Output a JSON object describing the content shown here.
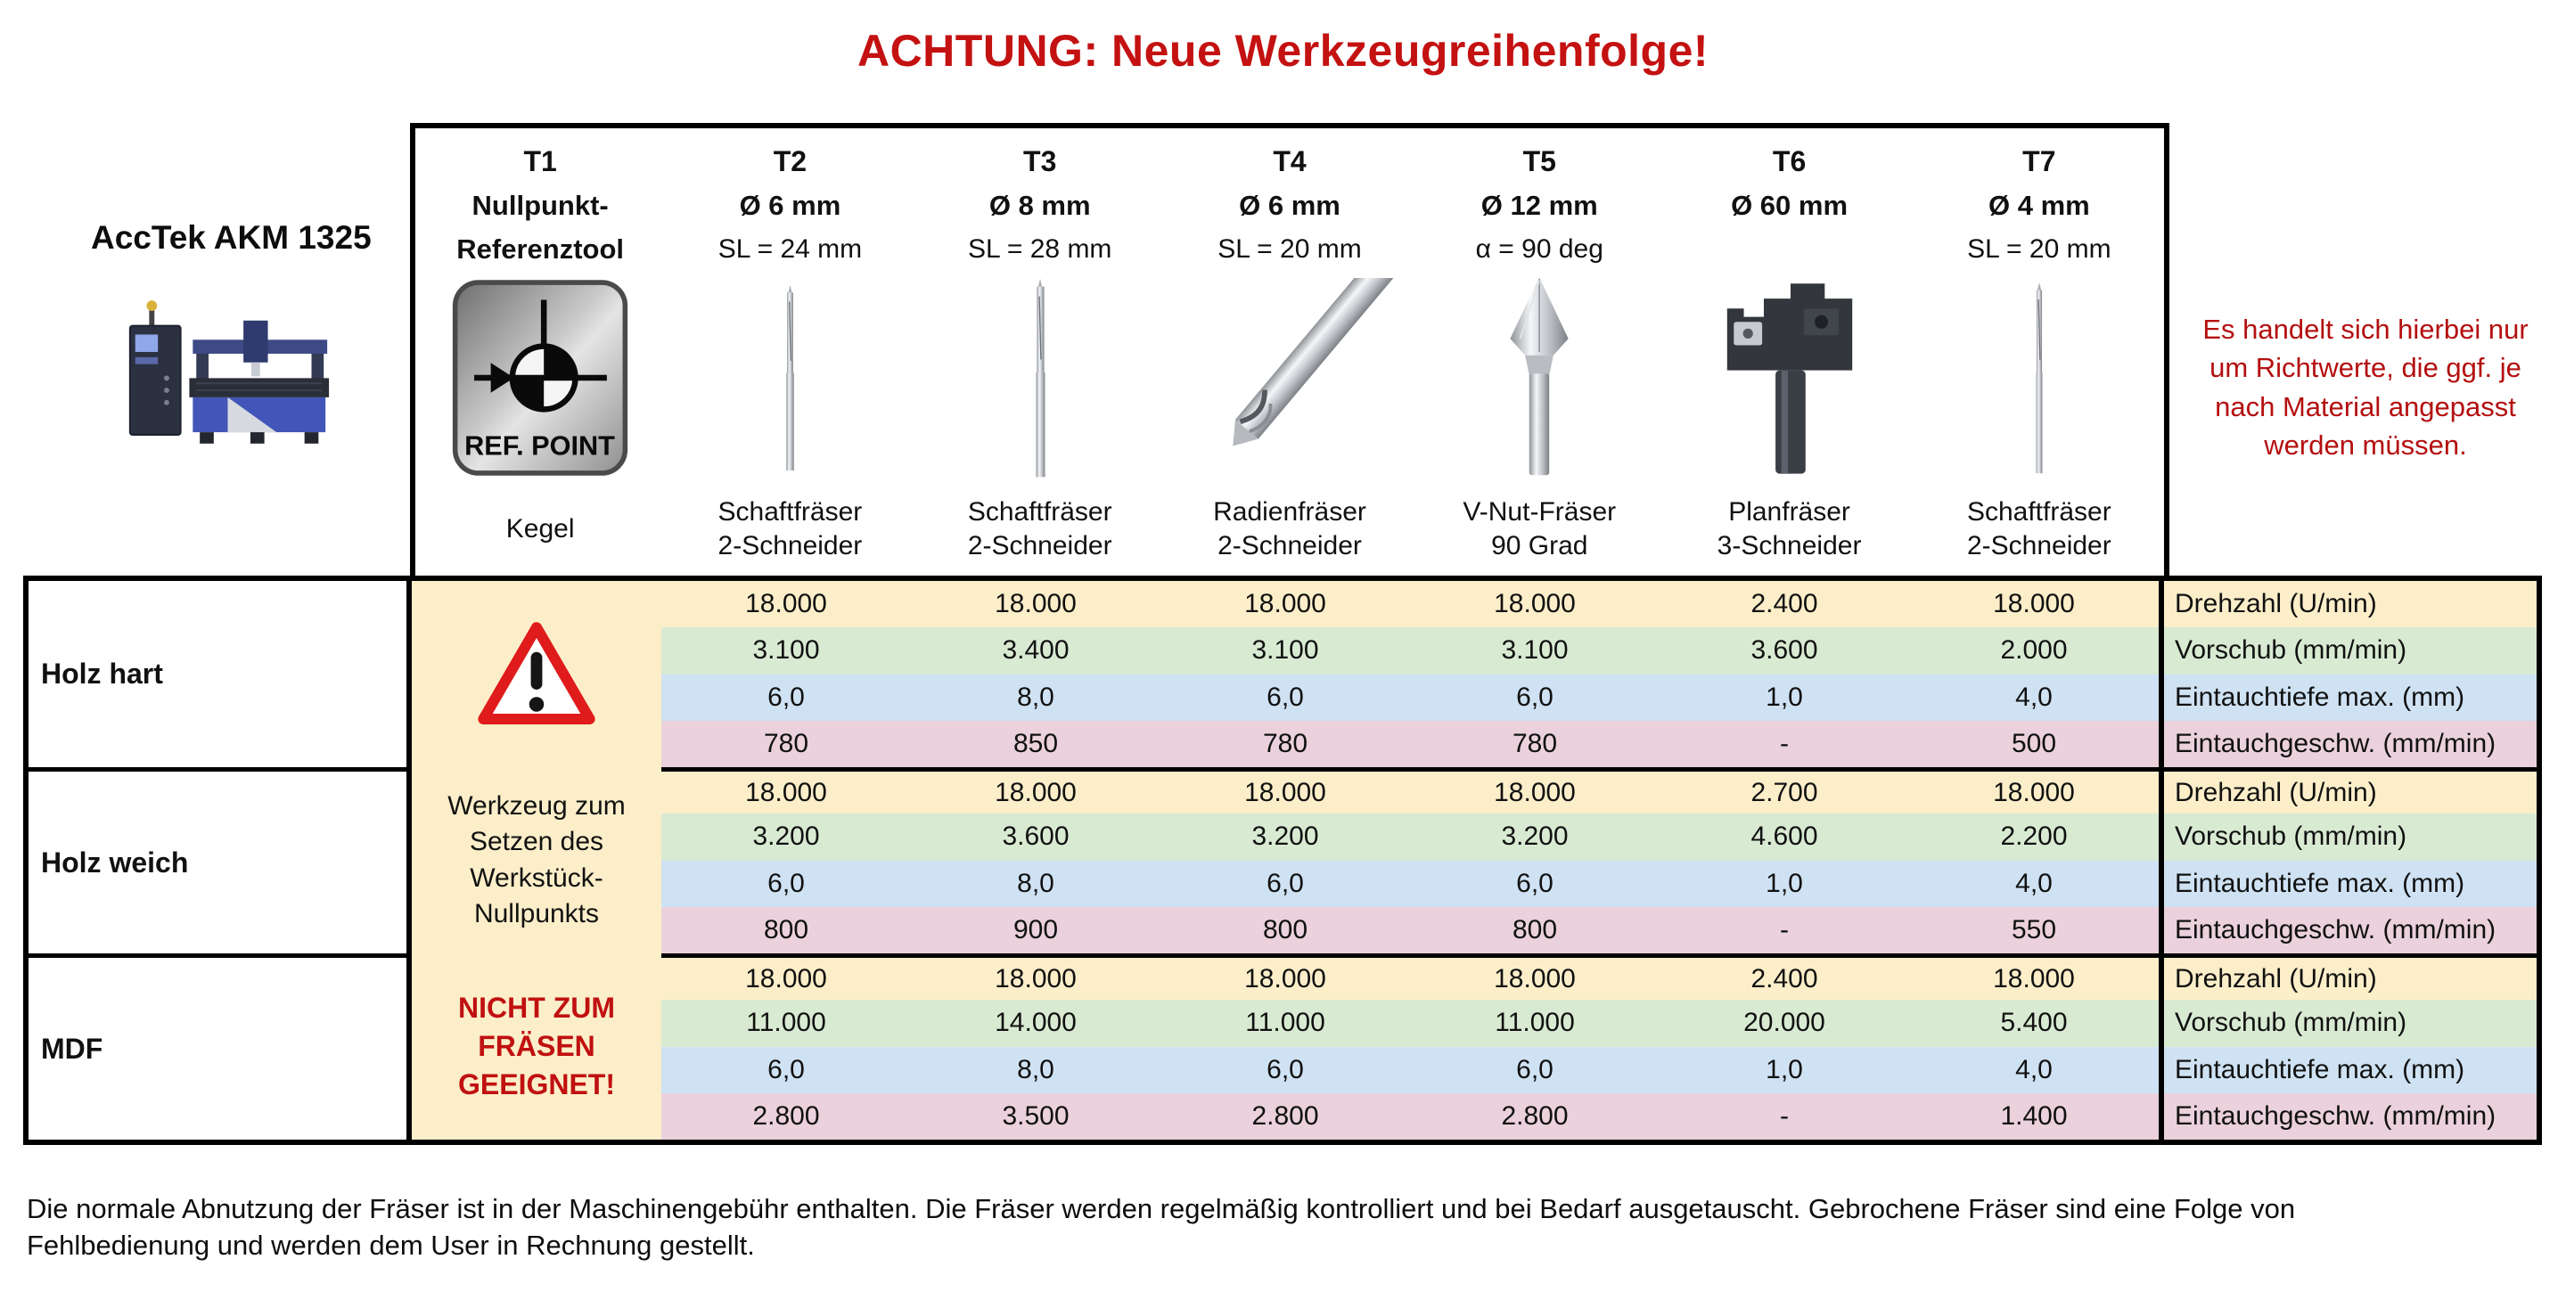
{
  "title": "ACHTUNG: Neue Werkzeugreihenfolge!",
  "machine_label": "AccTek AKM 1325",
  "note": "Es handelt sich hierbei nur\num Richtwerte, die ggf. je\nnach Material angepasst\nwerden müssen.",
  "header": {
    "tools": [
      {
        "id": "T1",
        "spec1": "Nullpunkt-",
        "spec2": "Referenztool",
        "name": "Kegel",
        "icon": "ref-point-icon"
      },
      {
        "id": "T2",
        "spec1": "Ø 6 mm",
        "spec2": "SL = 24 mm",
        "name": "Schaftfräser\n2-Schneider",
        "icon": "endmill-icon"
      },
      {
        "id": "T3",
        "spec1": "Ø 8 mm",
        "spec2": "SL = 28 mm",
        "name": "Schaftfräser\n2-Schneider",
        "icon": "endmill-icon"
      },
      {
        "id": "T4",
        "spec1": "Ø 6 mm",
        "spec2": "SL = 20 mm",
        "name": "Radienfräser\n2-Schneider",
        "icon": "radius-mill-icon"
      },
      {
        "id": "T5",
        "spec1": "Ø 12 mm",
        "spec2": "α = 90 deg",
        "name": "V-Nut-Fräser\n90 Grad",
        "icon": "v-bit-icon"
      },
      {
        "id": "T6",
        "spec1": "Ø 60 mm",
        "spec2": "",
        "name": "Planfräser\n3-Schneider",
        "icon": "surfacing-cutter-icon"
      },
      {
        "id": "T7",
        "spec1": "Ø 4 mm",
        "spec2": "SL = 20 mm",
        "name": "Schaftfräser\n2-Schneider",
        "icon": "endmill-icon"
      }
    ]
  },
  "t1_column": {
    "ref_label": "REF. POINT",
    "purpose_text": "Werkzeug zum\nSetzen des\nWerkstück-\nNullpunkts",
    "warning_text": "NICHT ZUM\nFRÄSEN\nGEEIGNET!"
  },
  "parameters": [
    "Drehzahl (U/min)",
    "Vorschub (mm/min)",
    "Eintauchtiefe max. (mm)",
    "Eintauchgeschw. (mm/min)"
  ],
  "materials": [
    {
      "name": "Holz hart",
      "rows": [
        [
          "18.000",
          "18.000",
          "18.000",
          "18.000",
          "2.400",
          "18.000"
        ],
        [
          "3.100",
          "3.400",
          "3.100",
          "3.100",
          "3.600",
          "2.000"
        ],
        [
          "6,0",
          "8,0",
          "6,0",
          "6,0",
          "1,0",
          "4,0"
        ],
        [
          "780",
          "850",
          "780",
          "780",
          "-",
          "500"
        ]
      ]
    },
    {
      "name": "Holz weich",
      "rows": [
        [
          "18.000",
          "18.000",
          "18.000",
          "18.000",
          "2.700",
          "18.000"
        ],
        [
          "3.200",
          "3.600",
          "3.200",
          "3.200",
          "4.600",
          "2.200"
        ],
        [
          "6,0",
          "8,0",
          "6,0",
          "6,0",
          "1,0",
          "4,0"
        ],
        [
          "800",
          "900",
          "800",
          "800",
          "-",
          "550"
        ]
      ]
    },
    {
      "name": "MDF",
      "rows": [
        [
          "18.000",
          "18.000",
          "18.000",
          "18.000",
          "2.400",
          "18.000"
        ],
        [
          "11.000",
          "14.000",
          "11.000",
          "11.000",
          "20.000",
          "5.400"
        ],
        [
          "6,0",
          "8,0",
          "6,0",
          "6,0",
          "1,0",
          "4,0"
        ],
        [
          "2.800",
          "3.500",
          "2.800",
          "2.800",
          "-",
          "1.400"
        ]
      ]
    }
  ],
  "footer": "Die normale Abnutzung der Fräser ist in der Maschinengebühr enthalten. Die Fräser werden regelmäßig kontrolliert und bei Bedarf ausgetauscht. Gebrochene Fräser sind eine Folge von\nFehlbedienung und werden dem User in Rechnung gestellt.",
  "colors": {
    "title_red": "#c41111",
    "note_red": "#b40f0f",
    "warning_red": "#c01010",
    "row_beige": "#fbeec9",
    "row_green": "#d9ead3",
    "row_blue": "#cfe2f3",
    "row_pink": "#ead1dc",
    "border_black": "#000000"
  }
}
